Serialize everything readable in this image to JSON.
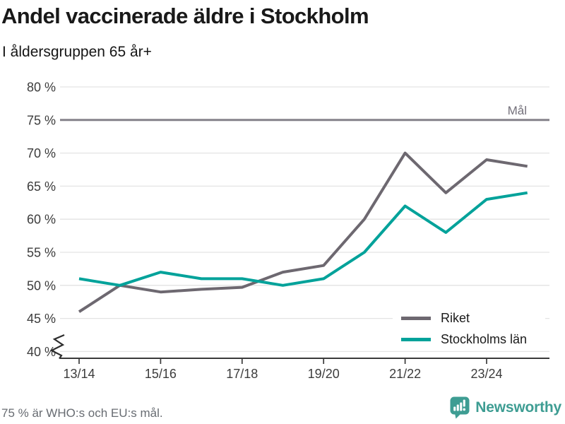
{
  "chart_data": {
    "type": "line",
    "title": "Andel vaccinerade äldre i Stockholm",
    "subtitle": "I åldersgruppen 65 år+",
    "seasons": [
      "13/14",
      "14/15",
      "15/16",
      "16/17",
      "17/18",
      "18/19",
      "19/20",
      "20/21",
      "21/22",
      "22/23",
      "23/24",
      "24/25"
    ],
    "x_tick_labels": [
      "13/14",
      "15/16",
      "17/18",
      "19/20",
      "21/22",
      "23/24"
    ],
    "x_tick_indices": [
      0,
      2,
      4,
      6,
      8,
      10
    ],
    "series": [
      {
        "name": "Riket",
        "color": "#6d6870",
        "values": [
          46,
          50,
          49,
          49.4,
          49.7,
          52,
          53,
          60,
          70,
          64,
          69,
          68
        ]
      },
      {
        "name": "Stockholms län",
        "color": "#00a29a",
        "values": [
          51,
          50,
          52,
          51,
          51,
          50,
          51,
          55,
          62,
          58,
          63,
          64
        ]
      }
    ],
    "goal_line": {
      "value": 75,
      "label": "Mål"
    },
    "ylim": [
      40,
      80
    ],
    "y_tick_step": 5,
    "y_tick_suffix": " %",
    "y_axis_break": true,
    "grid": true,
    "legend_position": "inside-bottom-right",
    "footnote": "75 % är WHO:s och EU:s mål.",
    "brand": "Newsworthy",
    "colors": {
      "gridline": "#e3e3e3",
      "axis": "#3a3a3a",
      "tick_text": "#3c3c3c",
      "goal_line": "#85828a",
      "goal_text": "#73707a",
      "brand_teal": "#3e9d93"
    }
  }
}
